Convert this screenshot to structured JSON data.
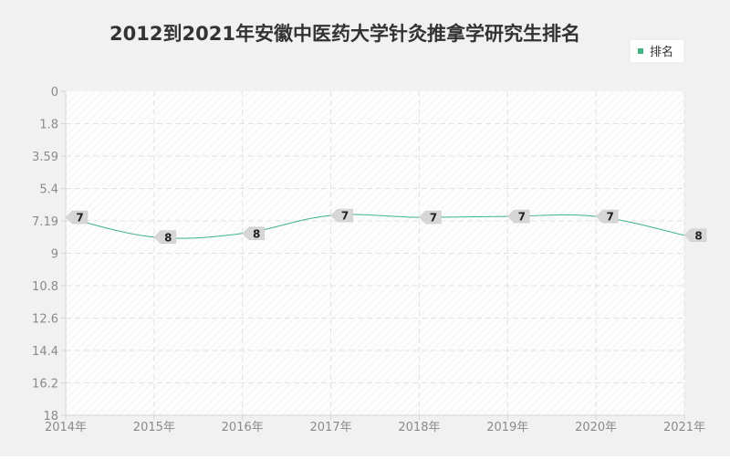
{
  "chart_data": {
    "type": "line",
    "title": "2012到2021年安徽中医药大学针灸推拿学研究生排名",
    "legend_position": "top-right",
    "categories": [
      "2014年",
      "2015年",
      "2016年",
      "2017年",
      "2018年",
      "2019年",
      "2020年",
      "2021年"
    ],
    "series": [
      {
        "name": "排名",
        "values": [
          7,
          8,
          8,
          7,
          7,
          7,
          7,
          8
        ],
        "plot_values": [
          7.0,
          8.1,
          7.9,
          6.9,
          7.0,
          6.95,
          6.95,
          8.0
        ],
        "color": "#3cb584"
      }
    ],
    "y_ticks": [
      "0",
      "1.8",
      "3.59",
      "5.4",
      "7.19",
      "9",
      "10.8",
      "12.6",
      "14.4",
      "16.2",
      "18"
    ],
    "ylim": [
      0,
      18
    ],
    "y_inverted": true,
    "grid": true,
    "colors": {
      "background": "#f1f1f1",
      "plot_background": "#fdfdfd",
      "grid": "#e2e2e2",
      "axis": "#d5d5d5",
      "label_box": "#d6d6d6"
    }
  }
}
